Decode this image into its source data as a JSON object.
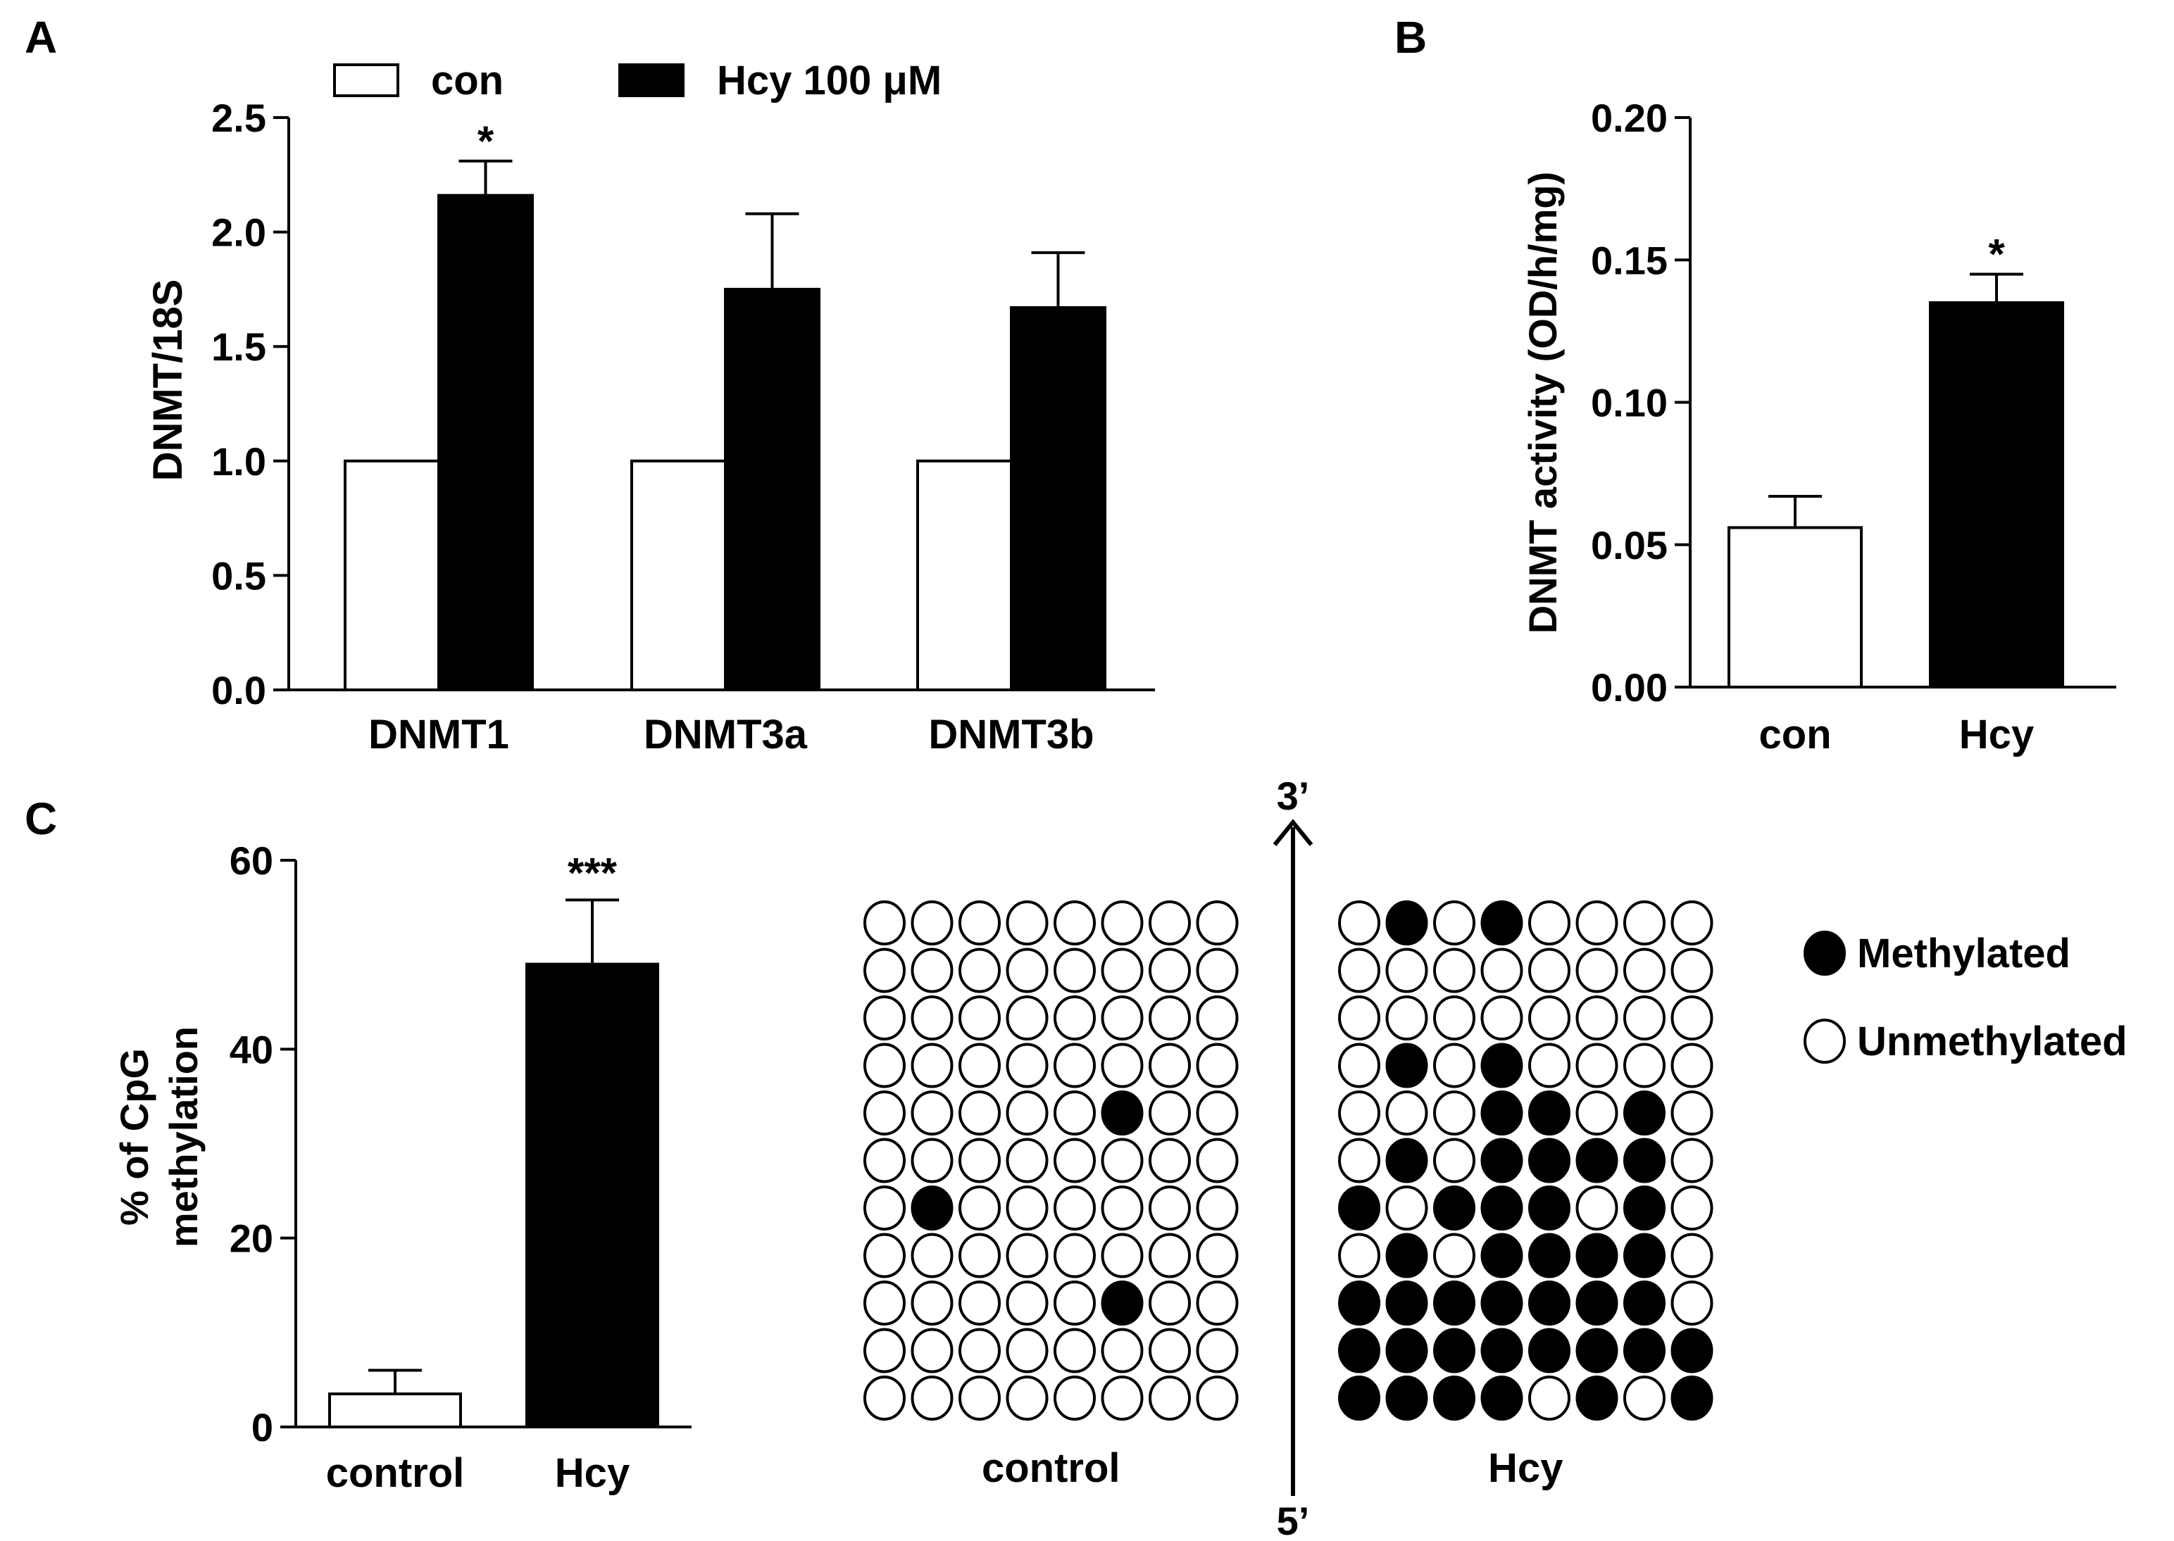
{
  "panel_labels": {
    "a": "A",
    "b": "B",
    "c": "C"
  },
  "colors": {
    "con": "#ffffff",
    "treated": "#000000",
    "axis": "#000000"
  },
  "chart_data": [
    {
      "type": "bar",
      "panel": "A",
      "categories": [
        "DNMT1",
        "DNMT3a",
        "DNMT3b"
      ],
      "ylabel": "DNMT/18S",
      "ylim": [
        0,
        2.5
      ],
      "yticks": [
        "0.0",
        "0.5",
        "1.0",
        "1.5",
        "2.0",
        "2.5"
      ],
      "series": [
        {
          "name": "con",
          "values": [
            1.0,
            1.0,
            1.0
          ],
          "errors": [
            0,
            0,
            0
          ],
          "sig": [
            "",
            "",
            ""
          ]
        },
        {
          "name": "Hcy 100 μM",
          "values": [
            2.16,
            1.75,
            1.67
          ],
          "errors": [
            0.15,
            0.33,
            0.24
          ],
          "sig": [
            "*",
            "",
            ""
          ]
        }
      ],
      "legend": "top"
    },
    {
      "type": "bar",
      "panel": "B",
      "categories": [
        "con",
        "Hcy"
      ],
      "ylabel": "DNMT activity (OD/h/mg)",
      "ylim": [
        0,
        0.2
      ],
      "yticks": [
        "0.00",
        "0.05",
        "0.10",
        "0.15",
        "0.20"
      ],
      "values": [
        0.056,
        0.135
      ],
      "errors": [
        0.011,
        0.01
      ],
      "sig": [
        "",
        "*"
      ]
    },
    {
      "type": "bar",
      "panel": "C",
      "categories": [
        "control",
        "Hcy"
      ],
      "ylabel_lines": [
        "% of CpG",
        "methylation"
      ],
      "ylim": [
        0,
        60
      ],
      "yticks": [
        "0",
        "20",
        "40",
        "60"
      ],
      "values": [
        3.5,
        49.0
      ],
      "errors": [
        2.5,
        6.8
      ],
      "sig": [
        "",
        "***"
      ]
    },
    {
      "type": "heatmap",
      "panel": "C",
      "axis_top": "3’",
      "axis_bottom": "5’",
      "legend": {
        "methylated": "Methylated",
        "unmethylated": "Unmethylated"
      },
      "grids": [
        {
          "label": "control",
          "rows": [
            [
              0,
              0,
              0,
              0,
              0,
              0,
              0,
              0
            ],
            [
              0,
              0,
              0,
              0,
              0,
              0,
              0,
              0
            ],
            [
              0,
              0,
              0,
              0,
              0,
              0,
              0,
              0
            ],
            [
              0,
              0,
              0,
              0,
              0,
              0,
              0,
              0
            ],
            [
              0,
              0,
              0,
              0,
              0,
              1,
              0,
              0
            ],
            [
              0,
              0,
              0,
              0,
              0,
              0,
              0,
              0
            ],
            [
              0,
              1,
              0,
              0,
              0,
              0,
              0,
              0
            ],
            [
              0,
              0,
              0,
              0,
              0,
              0,
              0,
              0
            ],
            [
              0,
              0,
              0,
              0,
              0,
              1,
              0,
              0
            ],
            [
              0,
              0,
              0,
              0,
              0,
              0,
              0,
              0
            ],
            [
              0,
              0,
              0,
              0,
              0,
              0,
              0,
              0
            ]
          ]
        },
        {
          "label": "Hcy",
          "rows": [
            [
              0,
              1,
              0,
              1,
              0,
              0,
              0,
              0
            ],
            [
              0,
              0,
              0,
              0,
              0,
              0,
              0,
              0
            ],
            [
              0,
              0,
              0,
              0,
              0,
              0,
              0,
              0
            ],
            [
              0,
              1,
              0,
              1,
              0,
              0,
              0,
              0
            ],
            [
              0,
              0,
              0,
              1,
              1,
              0,
              1,
              0
            ],
            [
              0,
              1,
              0,
              1,
              1,
              1,
              1,
              0
            ],
            [
              1,
              0,
              1,
              1,
              1,
              0,
              1,
              0
            ],
            [
              0,
              1,
              0,
              1,
              1,
              1,
              1,
              0
            ],
            [
              1,
              1,
              1,
              1,
              1,
              1,
              1,
              0
            ],
            [
              1,
              1,
              1,
              1,
              1,
              1,
              1,
              1
            ],
            [
              1,
              1,
              1,
              1,
              0,
              1,
              0,
              1
            ]
          ]
        }
      ]
    }
  ]
}
